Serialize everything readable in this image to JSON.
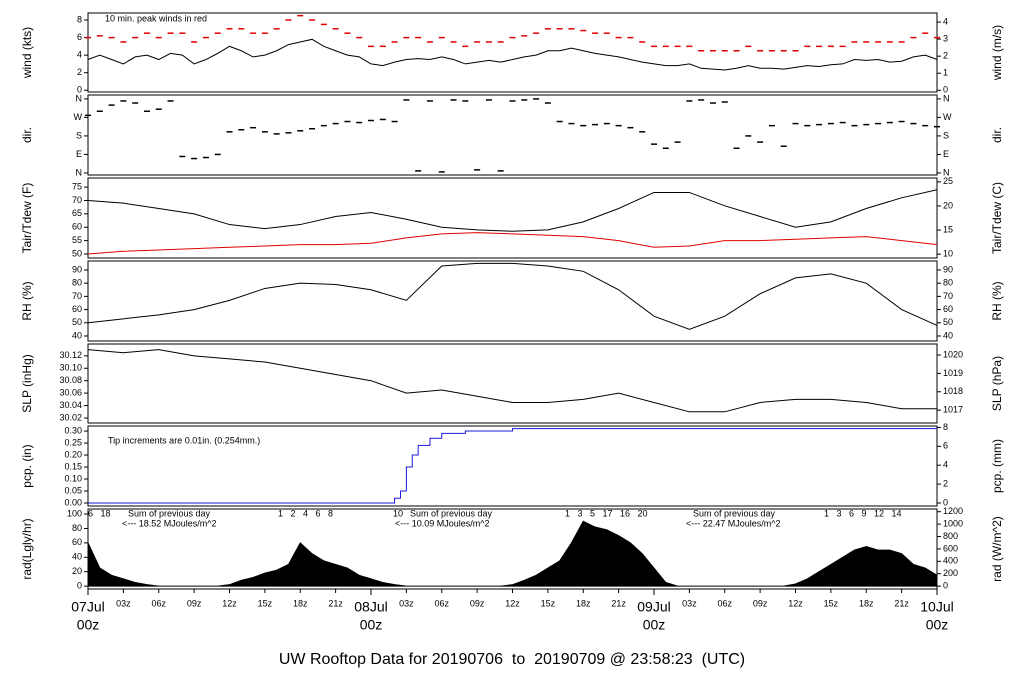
{
  "title": "UW Rooftop Data for 20190706  to  20190709 @ 23:58:23  (UTC)",
  "title_color": "#1a1adc",
  "x_axis": {
    "xlim": [
      0,
      72
    ],
    "date_color": "#e00000",
    "ticks": [
      {
        "value": 3,
        "label": "03z"
      },
      {
        "value": 6,
        "label": "06z"
      },
      {
        "value": 9,
        "label": "09z"
      },
      {
        "value": 12,
        "label": "12z"
      },
      {
        "value": 15,
        "label": "15z"
      },
      {
        "value": 18,
        "label": "18z"
      },
      {
        "value": 21,
        "label": "21z"
      },
      {
        "value": 27,
        "label": "03z"
      },
      {
        "value": 30,
        "label": "06z"
      },
      {
        "value": 33,
        "label": "09z"
      },
      {
        "value": 36,
        "label": "12z"
      },
      {
        "value": 39,
        "label": "15z"
      },
      {
        "value": 42,
        "label": "18z"
      },
      {
        "value": 45,
        "label": "21z"
      },
      {
        "value": 51,
        "label": "03z"
      },
      {
        "value": 54,
        "label": "06z"
      },
      {
        "value": 57,
        "label": "09z"
      },
      {
        "value": 60,
        "label": "12z"
      },
      {
        "value": 63,
        "label": "15z"
      },
      {
        "value": 66,
        "label": "18z"
      },
      {
        "value": 69,
        "label": "21z"
      }
    ],
    "date_ticks": [
      {
        "value": 0,
        "label": "07Jul",
        "sublabel": "00z"
      },
      {
        "value": 24,
        "label": "08Jul",
        "sublabel": "00z"
      },
      {
        "value": 48,
        "label": "09Jul",
        "sublabel": "00z"
      },
      {
        "value": 72,
        "label": "10Jul",
        "sublabel": "00z"
      }
    ]
  },
  "chart_data": [
    {
      "type": "line",
      "ylabel": "wind (kts)",
      "y2label": "wind (m/s)",
      "ylim": [
        -0.2,
        8.8
      ],
      "yticks": [
        0,
        2,
        4,
        6,
        8
      ],
      "y2lim": [
        -0.1,
        4.53
      ],
      "y2ticks": [
        0,
        1,
        2,
        3,
        4
      ],
      "annotations": [
        "10 min. peak winds in red"
      ],
      "annotation_color": "#e00000",
      "x": [
        0,
        1,
        2,
        3,
        4,
        5,
        6,
        7,
        8,
        9,
        10,
        11,
        12,
        13,
        14,
        15,
        16,
        17,
        18,
        19,
        20,
        21,
        22,
        23,
        24,
        25,
        26,
        27,
        28,
        29,
        30,
        31,
        32,
        33,
        34,
        35,
        36,
        37,
        38,
        39,
        40,
        41,
        42,
        43,
        44,
        45,
        46,
        47,
        48,
        49,
        50,
        51,
        52,
        53,
        54,
        55,
        56,
        57,
        58,
        59,
        60,
        61,
        62,
        63,
        64,
        65,
        66,
        67,
        68,
        69,
        70,
        71,
        72
      ],
      "series": [
        {
          "name": "wind",
          "color": "#000000",
          "values": [
            3.5,
            4,
            3.5,
            3,
            3.8,
            4,
            3.5,
            4.2,
            4,
            3,
            3.5,
            4.2,
            5,
            4.5,
            3.8,
            4,
            4.5,
            5.2,
            5.5,
            5.8,
            5,
            4.5,
            4,
            3.8,
            3,
            2.8,
            3.2,
            3.5,
            3.6,
            3.5,
            3.8,
            3.5,
            3,
            3.2,
            3.4,
            3.2,
            3.5,
            3.8,
            4,
            4.5,
            4.5,
            4.8,
            4.5,
            4.2,
            4,
            3.8,
            3.5,
            3.2,
            3,
            2.8,
            2.8,
            3,
            2.5,
            2.4,
            2.3,
            2.5,
            2.8,
            2.5,
            2.5,
            2.4,
            2.6,
            2.8,
            2.7,
            2.9,
            3,
            3.5,
            3.4,
            3.5,
            3.2,
            3.3,
            3.8,
            4,
            3.5
          ]
        },
        {
          "name": "peak",
          "type": "dash",
          "color": "#e00000",
          "values": [
            6,
            6.2,
            6,
            5.5,
            6,
            6.5,
            6,
            6.5,
            6.5,
            5.5,
            6,
            6.5,
            7,
            7,
            6.5,
            6.5,
            7,
            8,
            8.5,
            8,
            7.5,
            7,
            6.5,
            6,
            5,
            5,
            5.5,
            6,
            6,
            5.5,
            6,
            5.5,
            5,
            5.5,
            5.5,
            5.5,
            6,
            6.2,
            6.5,
            7,
            7,
            7,
            6.8,
            6.5,
            6.5,
            6,
            6,
            5.5,
            5,
            5,
            5,
            5,
            4.5,
            4.5,
            4.5,
            4.5,
            5,
            4.5,
            4.5,
            4.5,
            4.5,
            5,
            5,
            5,
            5,
            5.5,
            5.5,
            5.5,
            5.5,
            5.5,
            6,
            6.5,
            6
          ]
        }
      ]
    },
    {
      "type": "dash",
      "ylabel": "dir.",
      "y2label": "dir.",
      "ylim": [
        -10,
        379
      ],
      "y2lim": [
        -10,
        379
      ],
      "yticks": [
        {
          "value": 0,
          "label": "N"
        },
        {
          "value": 90,
          "label": "E"
        },
        {
          "value": 180,
          "label": "S"
        },
        {
          "value": 270,
          "label": "W"
        },
        {
          "value": 360,
          "label": "N"
        }
      ],
      "y2ticks": [
        {
          "value": 0,
          "label": "N"
        },
        {
          "value": 90,
          "label": "E"
        },
        {
          "value": 180,
          "label": "S"
        },
        {
          "value": 270,
          "label": "W"
        },
        {
          "value": 360,
          "label": "N"
        }
      ],
      "x": [
        0,
        1,
        2,
        3,
        4,
        5,
        6,
        7,
        8,
        9,
        10,
        11,
        12,
        13,
        14,
        15,
        16,
        17,
        18,
        19,
        20,
        21,
        22,
        23,
        24,
        25,
        26,
        27,
        28,
        29,
        30,
        31,
        32,
        33,
        34,
        35,
        36,
        37,
        38,
        39,
        40,
        41,
        42,
        43,
        44,
        45,
        46,
        47,
        48,
        49,
        50,
        51,
        52,
        53,
        54,
        55,
        56,
        57,
        58,
        59,
        60,
        61,
        62,
        63,
        64,
        65,
        66,
        67,
        68,
        69,
        70,
        71,
        72
      ],
      "series": [
        {
          "name": "dir",
          "color": "#000000",
          "values": [
            280,
            300,
            330,
            350,
            340,
            300,
            310,
            350,
            80,
            70,
            75,
            90,
            200,
            210,
            220,
            200,
            190,
            195,
            205,
            215,
            230,
            240,
            250,
            245,
            255,
            260,
            250,
            355,
            10,
            350,
            5,
            355,
            350,
            15,
            355,
            10,
            350,
            355,
            360,
            340,
            250,
            240,
            230,
            235,
            240,
            230,
            220,
            200,
            140,
            120,
            150,
            350,
            355,
            340,
            345,
            120,
            180,
            150,
            230,
            130,
            240,
            230,
            235,
            240,
            245,
            230,
            235,
            240,
            245,
            250,
            240,
            230,
            225
          ]
        }
      ]
    },
    {
      "type": "line",
      "ylabel": "Tair/Tdew (F)",
      "y2label": "Tair/Tdew (C)",
      "ylim": [
        48.5,
        78.4
      ],
      "yticks": [
        50,
        55,
        60,
        65,
        70,
        75
      ],
      "y2lim": [
        9.2,
        25.8
      ],
      "y2ticks": [
        10,
        15,
        20,
        25
      ],
      "x": [
        0,
        3,
        6,
        9,
        12,
        15,
        18,
        21,
        24,
        27,
        30,
        33,
        36,
        39,
        42,
        45,
        48,
        51,
        54,
        57,
        60,
        63,
        66,
        69,
        72
      ],
      "series": [
        {
          "name": "Tair",
          "color": "#000000",
          "values": [
            70,
            69,
            67,
            65,
            61,
            59.5,
            61,
            64,
            65.5,
            63,
            60,
            59,
            58.5,
            59,
            62,
            67,
            73,
            73,
            68,
            64,
            60,
            62,
            67,
            71,
            74
          ]
        },
        {
          "name": "Tdew",
          "color": "#e00000",
          "values": [
            50,
            51,
            51.5,
            52,
            52.5,
            53,
            53.5,
            53.5,
            54,
            56,
            57.5,
            58,
            57.5,
            57,
            56.5,
            55,
            52.5,
            53,
            55,
            55,
            55.5,
            56,
            56.5,
            55,
            53.5
          ]
        }
      ]
    },
    {
      "type": "line",
      "ylabel": "RH (%)",
      "y2label": "RH (%)",
      "ylim": [
        36.2,
        96.8
      ],
      "yticks": [
        40,
        50,
        60,
        70,
        80,
        90
      ],
      "y2lim": [
        36.2,
        96.8
      ],
      "y2ticks": [
        40,
        50,
        60,
        70,
        80,
        90
      ],
      "x": [
        0,
        3,
        6,
        9,
        12,
        15,
        18,
        21,
        24,
        27,
        30,
        33,
        36,
        39,
        42,
        45,
        48,
        51,
        54,
        57,
        60,
        63,
        66,
        69,
        72
      ],
      "series": [
        {
          "name": "RH",
          "color": "#000000",
          "values": [
            50,
            53,
            56,
            60,
            67,
            76,
            80,
            79,
            75,
            67,
            93,
            95,
            95,
            93,
            89,
            75,
            55,
            45,
            55,
            72,
            84,
            87,
            80,
            60,
            48
          ]
        }
      ]
    },
    {
      "type": "line",
      "ylabel": "SLP (inHg)",
      "y2label": "SLP (hPa)",
      "ylim": [
        30.012,
        30.139
      ],
      "yticks": [
        {
          "value": 30.02,
          "label": "30.02"
        },
        {
          "value": 30.04,
          "label": "30.04"
        },
        {
          "value": 30.06,
          "label": "30.06"
        },
        {
          "value": 30.08,
          "label": "30.08"
        },
        {
          "value": 30.1,
          "label": "30.10"
        },
        {
          "value": 30.12,
          "label": "30.12"
        }
      ],
      "y2lim": [
        1016.3,
        1020.6
      ],
      "y2ticks": [
        1017,
        1018,
        1019,
        1020
      ],
      "x": [
        0,
        3,
        6,
        9,
        12,
        15,
        18,
        21,
        24,
        27,
        30,
        33,
        36,
        39,
        42,
        45,
        48,
        51,
        54,
        57,
        60,
        63,
        66,
        69,
        72
      ],
      "series": [
        {
          "name": "SLP",
          "color": "#000000",
          "values": [
            30.13,
            30.125,
            30.13,
            30.12,
            30.115,
            30.11,
            30.1,
            30.09,
            30.08,
            30.06,
            30.065,
            30.055,
            30.045,
            30.045,
            30.05,
            30.06,
            30.045,
            30.03,
            30.03,
            30.045,
            30.05,
            30.05,
            30.045,
            30.035,
            30.035
          ]
        }
      ]
    },
    {
      "type": "step",
      "ylabel": "pcp. (in)",
      "y2label": "pcp. (mm)",
      "ylim": [
        -0.0125,
        0.321
      ],
      "yticks": [
        {
          "value": 0,
          "label": "0.00"
        },
        0.05,
        {
          "value": 0.1,
          "label": "0.10"
        },
        0.15,
        {
          "value": 0.2,
          "label": "0.20"
        },
        0.25,
        {
          "value": 0.3,
          "label": "0.30"
        }
      ],
      "y2lim": [
        -0.32,
        8.15
      ],
      "y2ticks": [
        0,
        2,
        4,
        6,
        8
      ],
      "annotations": [
        "Tip increments are 0.01in. (0.254mm.)"
      ],
      "annotation_color": "#1a1adc",
      "x": [
        0,
        25.5,
        26,
        26.5,
        27,
        27.5,
        28,
        29,
        30,
        32,
        36,
        72
      ],
      "series": [
        {
          "name": "pcp",
          "color": "#1a1adc",
          "values": [
            0,
            0,
            0.02,
            0.05,
            0.15,
            0.2,
            0.24,
            0.27,
            0.29,
            0.3,
            0.31,
            0.31
          ]
        }
      ]
    },
    {
      "type": "area",
      "ylabel": "rad(Lgly/hr)",
      "y2label": "rad (W/m^2)",
      "ylim": [
        -4,
        107
      ],
      "yticks": [
        0,
        20,
        40,
        60,
        80,
        100
      ],
      "y2lim": [
        -46.5,
        1244
      ],
      "y2ticks": [
        0,
        200,
        400,
        600,
        800,
        1000,
        1200
      ],
      "annotations": [
        "6   18",
        "Sum of previous day",
        "<--- 18.52 MJoules/m^2",
        "1   2   4   6   8",
        "10",
        "Sum of previous day",
        "<--- 10.09 MJoules/m^2",
        "1   3   5   17   16   20",
        "Sum of previous day",
        "<--- 22.47 MJoules/m^2",
        "1   3   6   9   12   14"
      ],
      "annotation_color": "#a030c8",
      "x": [
        0,
        1,
        2,
        3,
        4,
        5,
        6,
        7,
        8,
        9,
        10,
        11,
        12,
        13,
        14,
        15,
        16,
        17,
        18,
        19,
        20,
        21,
        22,
        23,
        24,
        25,
        26,
        27,
        28,
        29,
        30,
        31,
        32,
        33,
        34,
        35,
        36,
        37,
        38,
        39,
        40,
        41,
        42,
        43,
        44,
        45,
        46,
        47,
        48,
        49,
        50,
        51,
        52,
        53,
        54,
        55,
        56,
        57,
        58,
        59,
        60,
        61,
        62,
        63,
        64,
        65,
        66,
        67,
        68,
        69,
        70,
        71,
        72
      ],
      "series": [
        {
          "name": "rad",
          "color": "#000000",
          "values": [
            60,
            25,
            15,
            10,
            5,
            2,
            0,
            0,
            0,
            0,
            0,
            0,
            2,
            8,
            12,
            18,
            22,
            30,
            60,
            45,
            35,
            30,
            25,
            15,
            10,
            5,
            2,
            0,
            0,
            0,
            0,
            0,
            0,
            0,
            0,
            0,
            2,
            8,
            15,
            25,
            35,
            60,
            90,
            82,
            78,
            70,
            60,
            45,
            25,
            5,
            0,
            0,
            0,
            0,
            0,
            0,
            0,
            0,
            0,
            0,
            3,
            10,
            20,
            30,
            40,
            50,
            55,
            50,
            50,
            45,
            30,
            25,
            15
          ]
        }
      ]
    }
  ]
}
